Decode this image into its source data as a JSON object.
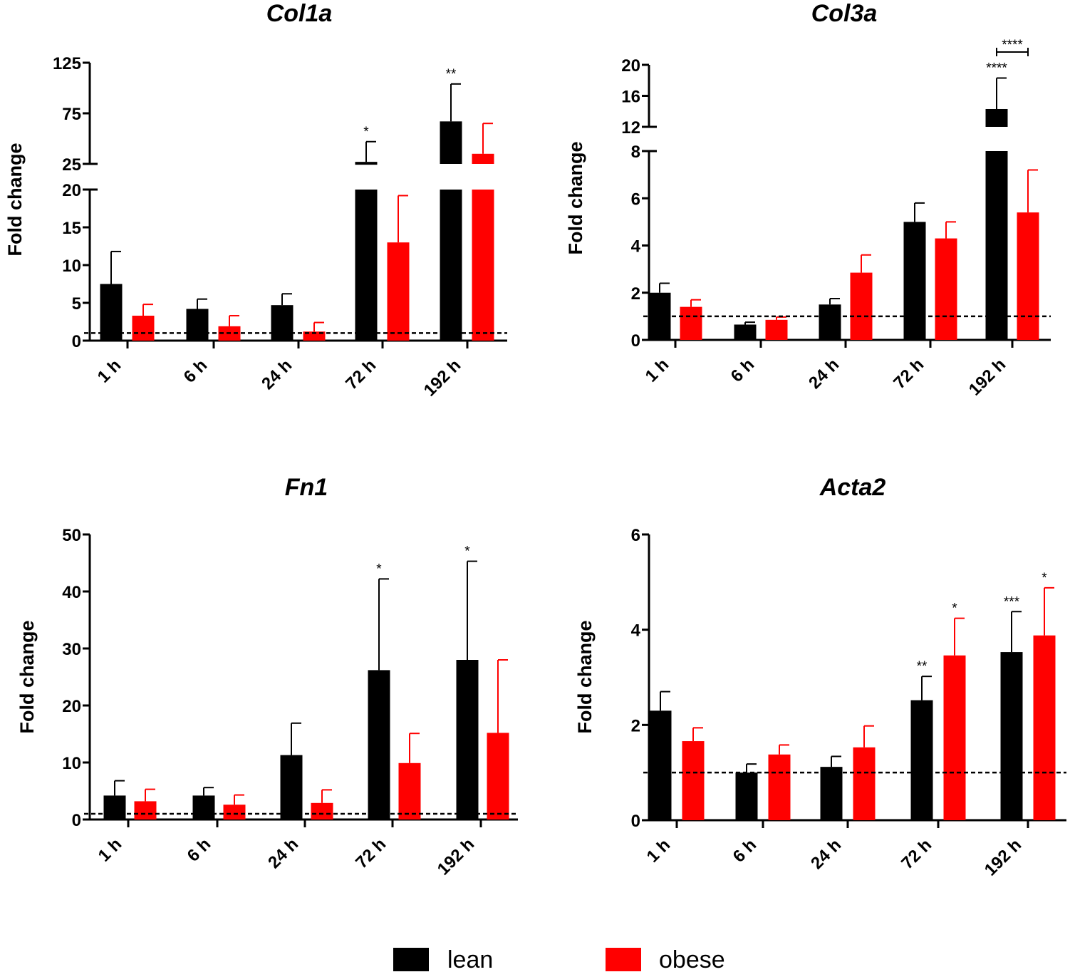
{
  "legend": [
    {
      "label": "lean",
      "color": "#000000"
    },
    {
      "label": "obese",
      "color": "#ff0000"
    }
  ],
  "chart_data": [
    {
      "type": "bar",
      "title": "Col1a",
      "ylabel": "Fold change",
      "categories": [
        "1 h",
        "6 h",
        "24 h",
        "72 h",
        "192 h"
      ],
      "reference_line": 1,
      "broken_axis": true,
      "ylim": [
        0,
        125
      ],
      "lower_segment": {
        "range": [
          0,
          20
        ],
        "ticks": [
          "0",
          "5",
          "10",
          "15",
          "20"
        ]
      },
      "upper_segment": {
        "range": [
          25,
          125
        ],
        "ticks": [
          "25",
          "75",
          "125"
        ]
      },
      "series": [
        {
          "name": "lean",
          "values": [
            7.5,
            4.2,
            4.7,
            27,
            67
          ],
          "errors": [
            4.3,
            1.3,
            1.5,
            20,
            37
          ]
        },
        {
          "name": "obese",
          "values": [
            3.3,
            1.9,
            1.2,
            13,
            35
          ],
          "errors": [
            1.5,
            1.4,
            1.2,
            6.2,
            30
          ]
        }
      ],
      "annotations": [
        {
          "category": "72 h",
          "series": "lean",
          "text": "*"
        },
        {
          "category": "192 h",
          "series": "lean",
          "text": "**"
        }
      ]
    },
    {
      "type": "bar",
      "title": "Col3a",
      "ylabel": "Fold change",
      "categories": [
        "1 h",
        "6 h",
        "24 h",
        "72 h",
        "192 h"
      ],
      "reference_line": 1,
      "broken_axis": true,
      "ylim": [
        0,
        20
      ],
      "lower_segment": {
        "range": [
          0,
          8
        ],
        "ticks": [
          "0",
          "2",
          "4",
          "6",
          "8"
        ]
      },
      "upper_segment": {
        "range": [
          12,
          20
        ],
        "ticks": [
          "12",
          "16",
          "20"
        ]
      },
      "series": [
        {
          "name": "lean",
          "values": [
            2.0,
            0.65,
            1.5,
            5.0,
            14.3
          ],
          "errors": [
            0.4,
            0.1,
            0.25,
            0.8,
            4.0
          ]
        },
        {
          "name": "obese",
          "values": [
            1.4,
            0.85,
            2.85,
            4.3,
            5.4
          ],
          "errors": [
            0.3,
            0.12,
            0.75,
            0.7,
            1.8
          ]
        }
      ],
      "annotations": [
        {
          "category": "192 h",
          "series": "lean",
          "text": "****"
        },
        {
          "category": "192 h",
          "series": "bracket",
          "text": "****"
        }
      ]
    },
    {
      "type": "bar",
      "title": "Fn1",
      "ylabel": "Fold change",
      "categories": [
        "1 h",
        "6 h",
        "24 h",
        "72 h",
        "192 h"
      ],
      "reference_line": 1,
      "ylim": [
        0,
        50
      ],
      "ticks": [
        "0",
        "10",
        "20",
        "30",
        "40",
        "50"
      ],
      "series": [
        {
          "name": "lean",
          "values": [
            4.2,
            4.2,
            11.3,
            26.2,
            28.0
          ],
          "errors": [
            2.6,
            1.4,
            5.6,
            16.0,
            17.3
          ]
        },
        {
          "name": "obese",
          "values": [
            3.2,
            2.6,
            2.9,
            9.9,
            15.2
          ],
          "errors": [
            2.1,
            1.7,
            2.3,
            5.2,
            12.8
          ]
        }
      ],
      "annotations": [
        {
          "category": "72 h",
          "series": "lean",
          "text": "*"
        },
        {
          "category": "192 h",
          "series": "lean",
          "text": "*"
        }
      ]
    },
    {
      "type": "bar",
      "title": "Acta2",
      "ylabel": "Fold change",
      "categories": [
        "1 h",
        "6 h",
        "24 h",
        "72 h",
        "192 h"
      ],
      "reference_line": 1,
      "ylim": [
        0,
        6
      ],
      "ticks": [
        "0",
        "2",
        "4",
        "6"
      ],
      "series": [
        {
          "name": "lean",
          "values": [
            2.3,
            1.0,
            1.12,
            2.52,
            3.53
          ],
          "errors": [
            0.4,
            0.18,
            0.22,
            0.5,
            0.85
          ]
        },
        {
          "name": "obese",
          "values": [
            1.66,
            1.38,
            1.53,
            3.46,
            3.88
          ],
          "errors": [
            0.28,
            0.2,
            0.45,
            0.78,
            1.0
          ]
        }
      ],
      "annotations": [
        {
          "category": "72 h",
          "series": "lean",
          "text": "**"
        },
        {
          "category": "72 h",
          "series": "obese",
          "text": "*"
        },
        {
          "category": "192 h",
          "series": "lean",
          "text": "***"
        },
        {
          "category": "192 h",
          "series": "obese",
          "text": "*"
        }
      ]
    }
  ]
}
